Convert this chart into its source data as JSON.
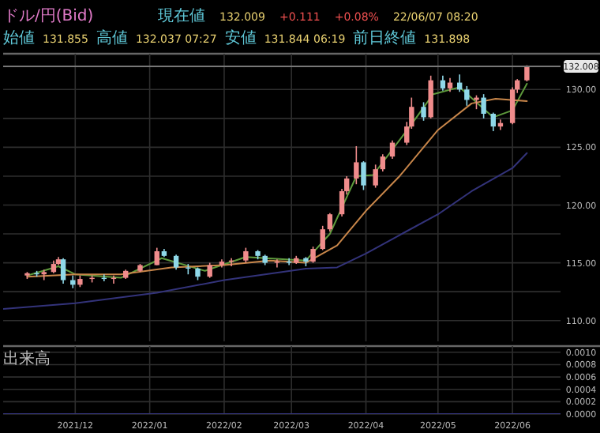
{
  "chart_data": [
    {
      "type": "candlestick",
      "title": "ドル/円(Bid)",
      "annotations": [
        "現在値",
        "132.009",
        "+0.111",
        "+0.08%",
        "22/06/07 08:20",
        "始値",
        "131.855",
        "高値",
        "132.037 07:27",
        "安値",
        "131.844 06:19",
        "前日終値",
        "131.898"
      ],
      "x": [
        "2021-11-11",
        "2021-11-15",
        "2021-11-18",
        "2021-11-22",
        "2021-11-24",
        "2021-11-26",
        "2021-11-30",
        "2021-12-03",
        "2021-12-08",
        "2021-12-13",
        "2021-12-17",
        "2021-12-22",
        "2021-12-28",
        "2022-01-04",
        "2022-01-07",
        "2022-01-12",
        "2022-01-17",
        "2022-01-21",
        "2022-01-26",
        "2022-01-31",
        "2022-02-04",
        "2022-02-10",
        "2022-02-15",
        "2022-02-18",
        "2022-02-23",
        "2022-02-28",
        "2022-03-03",
        "2022-03-07",
        "2022-03-10",
        "2022-03-14",
        "2022-03-17",
        "2022-03-22",
        "2022-03-24",
        "2022-03-28",
        "2022-03-31",
        "2022-04-05",
        "2022-04-08",
        "2022-04-12",
        "2022-04-18",
        "2022-04-20",
        "2022-04-25",
        "2022-04-28",
        "2022-05-03",
        "2022-05-06",
        "2022-05-10",
        "2022-05-13",
        "2022-05-17",
        "2022-05-20",
        "2022-05-24",
        "2022-05-27",
        "2022-06-01",
        "2022-06-03",
        "2022-06-07"
      ],
      "ohlc": [
        [
          113.9,
          114.2,
          113.6,
          114.1
        ],
        [
          114.1,
          114.3,
          113.8,
          114.0
        ],
        [
          114.0,
          114.4,
          113.5,
          114.2
        ],
        [
          114.2,
          115.2,
          114.1,
          114.9
        ],
        [
          114.9,
          115.5,
          114.8,
          115.3
        ],
        [
          115.3,
          115.4,
          113.2,
          113.5
        ],
        [
          113.5,
          113.9,
          112.8,
          113.1
        ],
        [
          113.1,
          113.9,
          112.9,
          113.6
        ],
        [
          113.6,
          113.9,
          113.3,
          113.7
        ],
        [
          113.7,
          114.0,
          113.4,
          113.6
        ],
        [
          113.6,
          113.9,
          113.2,
          113.7
        ],
        [
          113.7,
          114.4,
          113.6,
          114.3
        ],
        [
          114.3,
          114.9,
          114.2,
          114.8
        ],
        [
          114.8,
          116.3,
          114.8,
          116.0
        ],
        [
          116.0,
          116.2,
          115.5,
          115.6
        ],
        [
          115.6,
          115.7,
          114.4,
          114.6
        ],
        [
          114.6,
          114.9,
          114.0,
          114.5
        ],
        [
          114.5,
          114.6,
          113.5,
          113.8
        ],
        [
          113.8,
          115.0,
          113.7,
          114.8
        ],
        [
          114.8,
          115.3,
          114.6,
          115.1
        ],
        [
          115.1,
          115.4,
          114.7,
          115.2
        ],
        [
          115.2,
          116.3,
          115.0,
          116.0
        ],
        [
          116.0,
          116.1,
          115.3,
          115.6
        ],
        [
          115.6,
          115.7,
          114.8,
          115.0
        ],
        [
          115.0,
          115.3,
          114.6,
          115.1
        ],
        [
          115.1,
          115.4,
          114.8,
          115.0
        ],
        [
          115.0,
          115.6,
          114.9,
          115.4
        ],
        [
          115.4,
          115.5,
          114.7,
          115.1
        ],
        [
          115.1,
          116.4,
          115.0,
          116.2
        ],
        [
          116.2,
          118.2,
          116.1,
          117.9
        ],
        [
          117.9,
          119.3,
          117.7,
          119.2
        ],
        [
          119.2,
          121.4,
          119.0,
          121.2
        ],
        [
          121.2,
          122.5,
          120.9,
          122.3
        ],
        [
          122.3,
          125.1,
          121.8,
          123.7
        ],
        [
          123.7,
          123.8,
          121.3,
          121.7
        ],
        [
          121.7,
          123.5,
          121.5,
          123.1
        ],
        [
          123.1,
          124.4,
          122.9,
          124.2
        ],
        [
          124.2,
          125.6,
          124.0,
          125.4
        ],
        [
          125.4,
          127.2,
          125.2,
          126.8
        ],
        [
          126.8,
          129.3,
          126.6,
          128.5
        ],
        [
          128.5,
          128.9,
          127.3,
          127.6
        ],
        [
          127.6,
          131.2,
          127.5,
          130.8
        ],
        [
          130.8,
          131.2,
          129.9,
          130.1
        ],
        [
          130.1,
          131.0,
          129.8,
          130.6
        ],
        [
          130.6,
          131.3,
          129.8,
          130.0
        ],
        [
          130.0,
          130.3,
          128.6,
          129.1
        ],
        [
          129.1,
          129.5,
          128.3,
          129.3
        ],
        [
          129.3,
          129.6,
          127.5,
          127.9
        ],
        [
          127.9,
          128.0,
          126.4,
          126.8
        ],
        [
          126.8,
          127.4,
          126.5,
          127.1
        ],
        [
          127.1,
          130.2,
          127.0,
          130.0
        ],
        [
          130.0,
          130.9,
          129.7,
          130.8
        ],
        [
          130.8,
          132.1,
          130.7,
          132.0
        ]
      ],
      "series": [
        {
          "type": "line",
          "color": "#5e9a3c",
          "x": [
            "2021-11-11",
            "2021-11-24",
            "2021-12-01",
            "2021-12-20",
            "2022-01-06",
            "2022-01-24",
            "2022-02-10",
            "2022-03-07",
            "2022-03-17",
            "2022-03-28",
            "2022-04-04",
            "2022-04-20",
            "2022-04-29",
            "2022-05-10",
            "2022-05-24",
            "2022-06-01",
            "2022-06-07"
          ],
          "values": [
            113.9,
            114.7,
            114.0,
            113.7,
            115.4,
            114.3,
            115.5,
            115.2,
            117.5,
            122.5,
            122.6,
            127.0,
            129.6,
            130.2,
            127.6,
            128.2,
            130.5
          ]
        },
        {
          "type": "line",
          "color": "#c8864a",
          "x": [
            "2021-11-11",
            "2021-12-01",
            "2021-12-20",
            "2022-01-10",
            "2022-02-01",
            "2022-02-20",
            "2022-03-07",
            "2022-03-20",
            "2022-04-01",
            "2022-04-15",
            "2022-05-01",
            "2022-05-15",
            "2022-05-25",
            "2022-06-07"
          ],
          "values": [
            113.8,
            114.0,
            114.0,
            114.6,
            114.8,
            115.2,
            115.0,
            116.5,
            119.5,
            122.5,
            126.5,
            128.8,
            129.2,
            129.0
          ]
        },
        {
          "type": "line",
          "color": "#33337a",
          "x": [
            "2021-11-01",
            "2021-12-01",
            "2022-01-04",
            "2022-02-01",
            "2022-03-07",
            "2022-03-20",
            "2022-04-01",
            "2022-04-15",
            "2022-05-01",
            "2022-05-15",
            "2022-06-01",
            "2022-06-07"
          ],
          "values": [
            111.0,
            111.5,
            112.4,
            113.5,
            114.5,
            114.6,
            115.8,
            117.4,
            119.2,
            121.2,
            123.2,
            124.5
          ]
        }
      ],
      "xlim": [
        "2021-11-01",
        "2022-06-21"
      ],
      "xticks": [
        {
          "value": "2021-12-01",
          "label": null
        },
        {
          "value": "2022-01-01",
          "label": null
        },
        {
          "value": "2022-02-01",
          "label": null
        },
        {
          "value": "2022-03-01",
          "label": null
        },
        {
          "value": "2022-04-01",
          "label": null
        },
        {
          "value": "2022-05-01",
          "label": null
        },
        {
          "value": "2022-06-01",
          "label": null
        }
      ],
      "ylim": [
        108.2,
        133.1
      ],
      "yticks": [
        {
          "value": 110,
          "label": "110.00"
        },
        {
          "value": 112.5,
          "label": null
        },
        {
          "value": 115,
          "label": "115.00"
        },
        {
          "value": 117.5,
          "label": null
        },
        {
          "value": 120,
          "label": "120.00"
        },
        {
          "value": 122.5,
          "label": null
        },
        {
          "value": 125,
          "label": "125.00"
        },
        {
          "value": 127.5,
          "label": null
        },
        {
          "value": 130,
          "label": "130.00"
        }
      ],
      "ref_lines": [
        {
          "axis": "y",
          "value": 132.008,
          "label": "132.008",
          "color": "#777777"
        }
      ],
      "grid": true,
      "tick_labels": "y"
    },
    {
      "type": "line",
      "title": "出来高",
      "series": [
        {
          "color": "#33337a",
          "x": [
            "2021-11-01",
            "2022-06-21"
          ],
          "values": [
            0,
            0
          ]
        }
      ],
      "xlim": [
        "2021-11-01",
        "2022-06-21"
      ],
      "xticks": [
        {
          "value": "2021-12-01",
          "label": "2021/12"
        },
        {
          "value": "2022-01-01",
          "label": "2022/01"
        },
        {
          "value": "2022-02-01",
          "label": "2022/02"
        },
        {
          "value": "2022-03-01",
          "label": "2022/03"
        },
        {
          "value": "2022-04-01",
          "label": "2022/04"
        },
        {
          "value": "2022-05-01",
          "label": "2022/05"
        },
        {
          "value": "2022-06-01",
          "label": "2022/06"
        }
      ],
      "ylim": [
        0,
        0.0011
      ],
      "yticks": [
        {
          "value": 0,
          "label": "0.0000"
        },
        {
          "value": 0.0002,
          "label": "0.0002"
        },
        {
          "value": 0.0004,
          "label": "0.0004"
        },
        {
          "value": 0.0006,
          "label": "0.0006"
        },
        {
          "value": 0.0008,
          "label": "0.0008"
        },
        {
          "value": 0.001,
          "label": "0.0010"
        }
      ],
      "grid": true
    }
  ]
}
